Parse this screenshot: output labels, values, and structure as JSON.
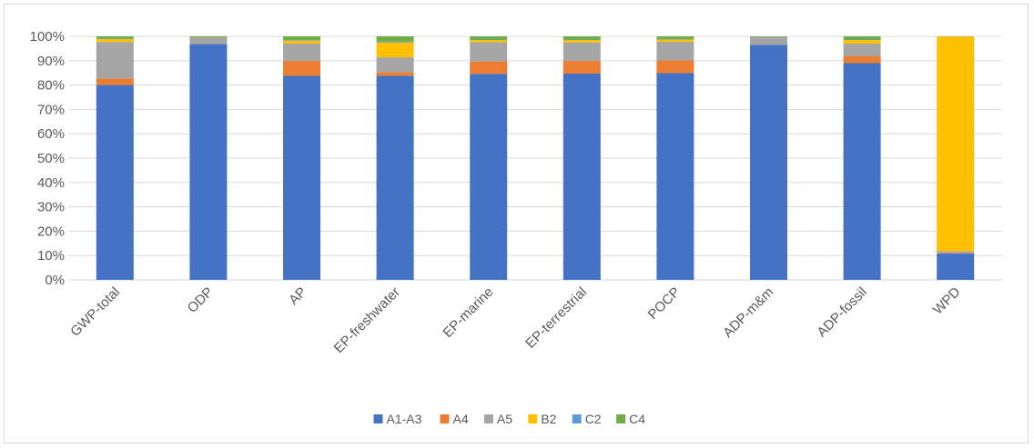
{
  "chart_data": {
    "type": "bar",
    "stacked": "percent",
    "categories": [
      "GWP-total",
      "ODP",
      "AP",
      "EP-freshwater",
      "EP-marine",
      "EP-terrestrial",
      "POCP",
      "ADP-m&m",
      "ADP-fossil",
      "WPD"
    ],
    "series": [
      {
        "name": "A1-A3",
        "color": "#4472C4",
        "values": [
          80.0,
          96.8,
          83.8,
          83.8,
          84.6,
          84.7,
          84.9,
          96.5,
          89.0,
          10.8
        ]
      },
      {
        "name": "A4",
        "color": "#ED7D31",
        "values": [
          2.7,
          0.0,
          6.1,
          1.5,
          5.1,
          5.2,
          5.2,
          0.0,
          2.8,
          0.3
        ]
      },
      {
        "name": "A5",
        "color": "#A5A5A5",
        "values": [
          15.0,
          2.7,
          7.1,
          6.1,
          7.9,
          7.6,
          7.7,
          3.3,
          5.2,
          0.7
        ]
      },
      {
        "name": "B2",
        "color": "#FFC000",
        "values": [
          1.2,
          0.0,
          1.2,
          6.1,
          0.9,
          1.0,
          0.9,
          0.0,
          1.5,
          88.1
        ]
      },
      {
        "name": "C2",
        "color": "#5B9BD5",
        "values": [
          0.2,
          0.0,
          0.2,
          0.3,
          0.2,
          0.2,
          0.2,
          0.0,
          0.2,
          0.0
        ]
      },
      {
        "name": "C4",
        "color": "#70AD47",
        "values": [
          0.9,
          0.5,
          1.6,
          2.2,
          1.3,
          1.3,
          1.1,
          0.2,
          1.3,
          0.1
        ]
      }
    ],
    "ylim": [
      0,
      100
    ],
    "y_ticks": [
      "0%",
      "10%",
      "20%",
      "30%",
      "40%",
      "50%",
      "60%",
      "70%",
      "80%",
      "90%",
      "100%"
    ],
    "title": "",
    "xlabel": "",
    "ylabel": "",
    "grid": true,
    "legend_position": "bottom",
    "gridline_color": "#d9d9d9",
    "text_color": "#595959"
  }
}
